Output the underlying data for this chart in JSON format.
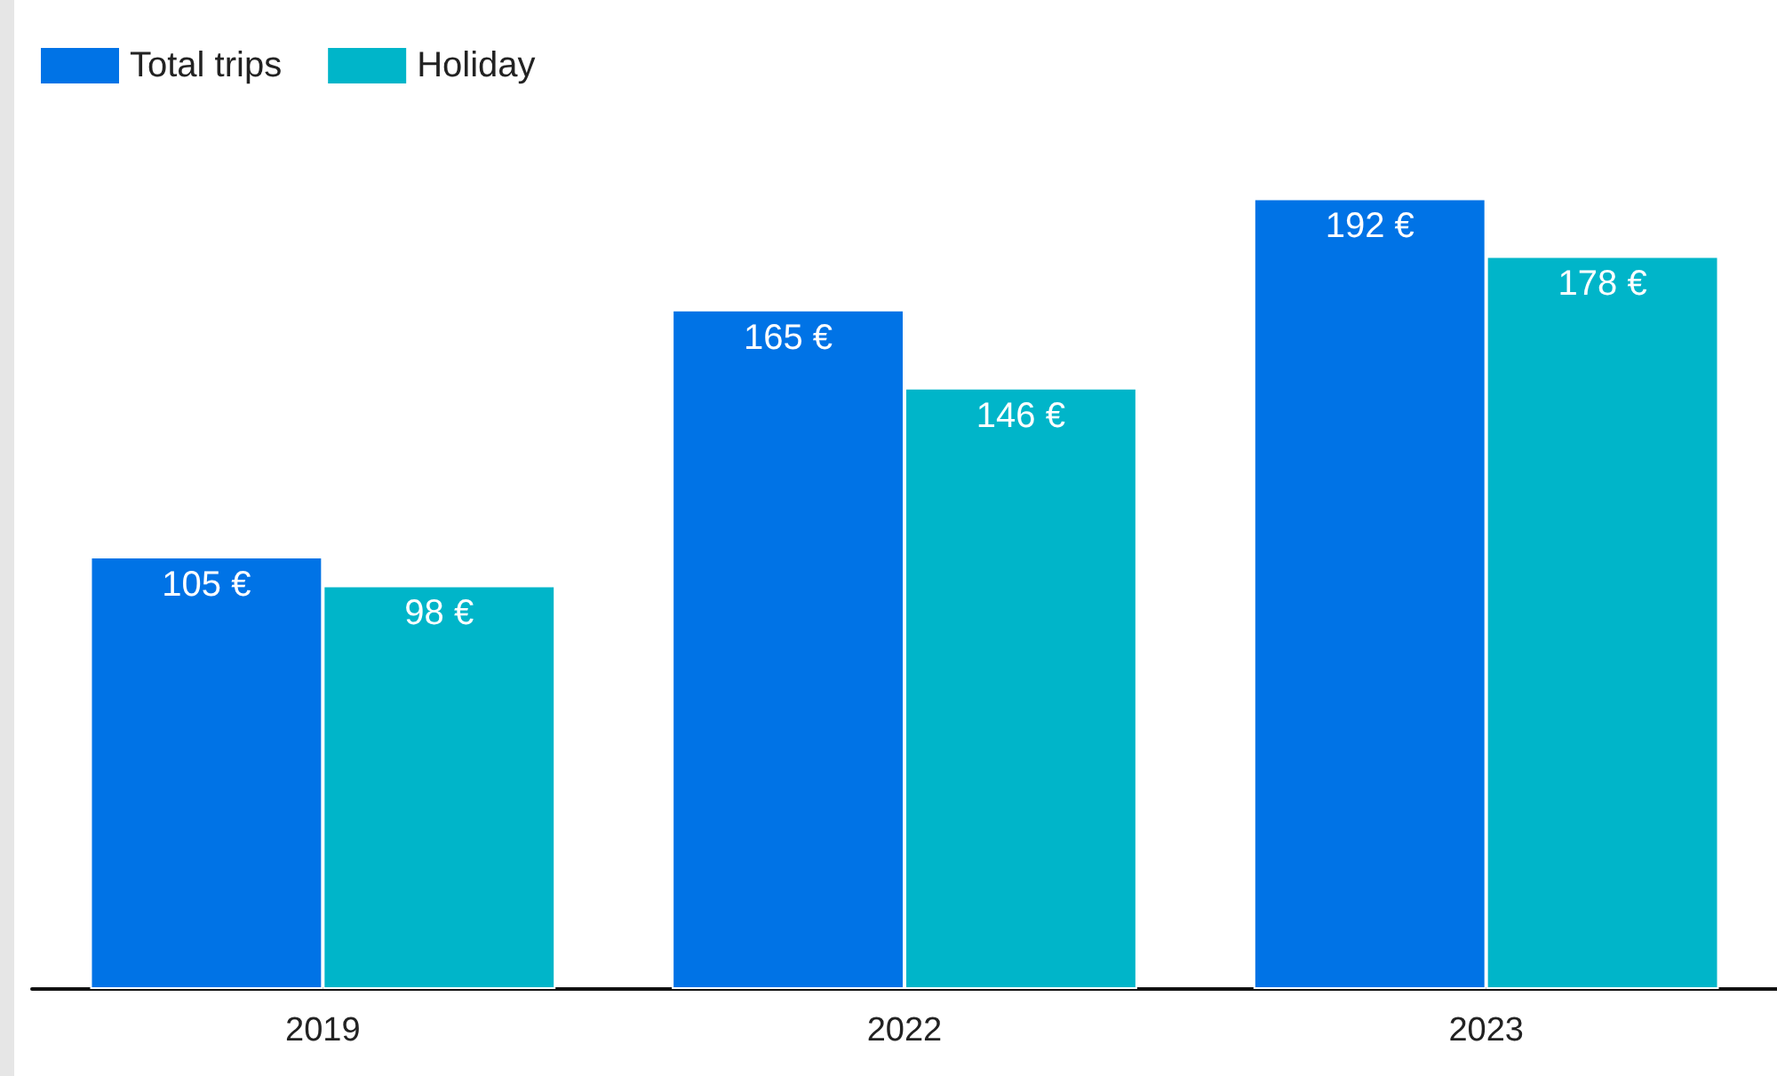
{
  "chart_data": {
    "type": "bar",
    "categories": [
      "2019",
      "2022",
      "2023"
    ],
    "series": [
      {
        "name": "Total trips",
        "color": "#0073e6",
        "values": [
          105,
          165,
          192
        ],
        "value_labels": [
          "105 €",
          "165 €",
          "192 €"
        ]
      },
      {
        "name": "Holiday",
        "color": "#00b5c9",
        "values": [
          98,
          146,
          178
        ],
        "value_labels": [
          "98 €",
          "146 €",
          "178 €"
        ]
      }
    ],
    "legend": "top left"
  }
}
